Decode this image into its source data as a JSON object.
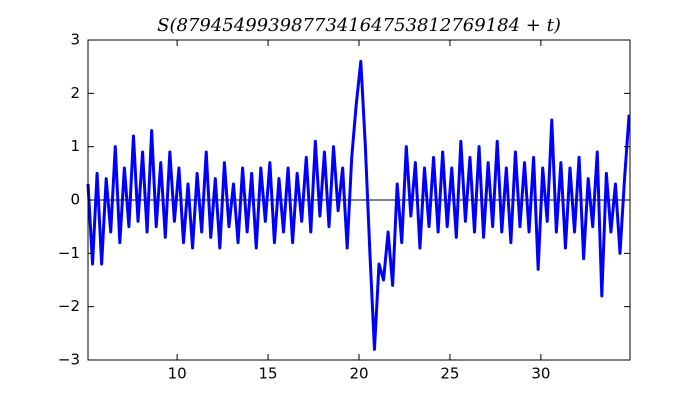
{
  "chart_data": {
    "type": "line",
    "title": "S(879454993987734164753812769184 + t)",
    "x": [
      5.1,
      5.35,
      5.6,
      5.85,
      6.1,
      6.35,
      6.6,
      6.85,
      7.1,
      7.35,
      7.6,
      7.85,
      8.1,
      8.35,
      8.6,
      8.85,
      9.1,
      9.35,
      9.6,
      9.85,
      10.1,
      10.35,
      10.6,
      10.85,
      11.1,
      11.35,
      11.6,
      11.85,
      12.1,
      12.35,
      12.6,
      12.85,
      13.1,
      13.35,
      13.6,
      13.85,
      14.1,
      14.35,
      14.6,
      14.85,
      15.1,
      15.35,
      15.6,
      15.85,
      16.1,
      16.35,
      16.6,
      16.85,
      17.1,
      17.35,
      17.6,
      17.85,
      18.1,
      18.35,
      18.6,
      18.85,
      19.1,
      19.35,
      19.6,
      19.85,
      20.1,
      20.35,
      20.6,
      20.85,
      21.1,
      21.35,
      21.6,
      21.85,
      22.1,
      22.35,
      22.6,
      22.85,
      23.1,
      23.35,
      23.6,
      23.85,
      24.1,
      24.35,
      24.6,
      24.85,
      25.1,
      25.35,
      25.6,
      25.85,
      26.1,
      26.35,
      26.6,
      26.85,
      27.1,
      27.35,
      27.6,
      27.85,
      28.1,
      28.35,
      28.6,
      28.85,
      29.1,
      29.35,
      29.6,
      29.85,
      30.1,
      30.35,
      30.6,
      30.85,
      31.1,
      31.35,
      31.6,
      31.85,
      32.1,
      32.35,
      32.6,
      32.85,
      33.1,
      33.35,
      33.6,
      33.85,
      34.1,
      34.35,
      34.6,
      34.85
    ],
    "series": [
      {
        "color": "#0000ff",
        "values": [
          0.3,
          -1.2,
          0.5,
          -1.2,
          0.4,
          -0.6,
          1.0,
          -0.8,
          0.6,
          -0.5,
          1.2,
          -0.4,
          0.9,
          -0.6,
          1.3,
          -0.5,
          0.7,
          -0.7,
          0.9,
          -0.4,
          0.6,
          -0.8,
          0.3,
          -0.9,
          0.5,
          -0.6,
          0.9,
          -0.7,
          0.4,
          -0.9,
          0.7,
          -0.5,
          0.3,
          -0.8,
          0.6,
          -0.6,
          0.5,
          -0.9,
          0.6,
          -0.4,
          0.7,
          -0.8,
          0.4,
          -0.6,
          0.6,
          -0.8,
          0.5,
          -0.4,
          0.8,
          -0.6,
          1.1,
          -0.3,
          0.9,
          -0.5,
          1.0,
          -0.2,
          0.6,
          -0.9,
          0.8,
          1.8,
          2.6,
          1.0,
          -1.0,
          -2.8,
          -1.2,
          -1.5,
          -0.6,
          -1.6,
          0.3,
          -0.8,
          1.0,
          -0.3,
          0.7,
          -0.9,
          0.6,
          -0.5,
          0.8,
          -0.6,
          0.9,
          -0.5,
          0.6,
          -0.7,
          1.1,
          -0.4,
          0.8,
          -0.6,
          1.0,
          -0.7,
          0.7,
          -0.5,
          1.1,
          -0.6,
          0.6,
          -0.8,
          0.9,
          -0.5,
          0.7,
          -0.6,
          0.8,
          -1.3,
          0.6,
          -0.4,
          1.5,
          -0.6,
          0.7,
          -0.9,
          0.6,
          -0.6,
          0.8,
          -1.1,
          0.4,
          -0.5,
          0.9,
          -1.8,
          0.5,
          -0.6,
          0.3,
          -1.0,
          0.4,
          1.6
        ]
      }
    ],
    "xlim": [
      5.1,
      34.9
    ],
    "ylim": [
      -3,
      3
    ],
    "xticks": [
      10,
      15,
      20,
      25,
      30
    ],
    "yticks": [
      {
        "value": -3,
        "label": "−3"
      },
      {
        "value": -2,
        "label": "−2"
      },
      {
        "value": -1,
        "label": "−1"
      },
      0,
      1,
      2,
      3
    ],
    "zero_line": true
  }
}
